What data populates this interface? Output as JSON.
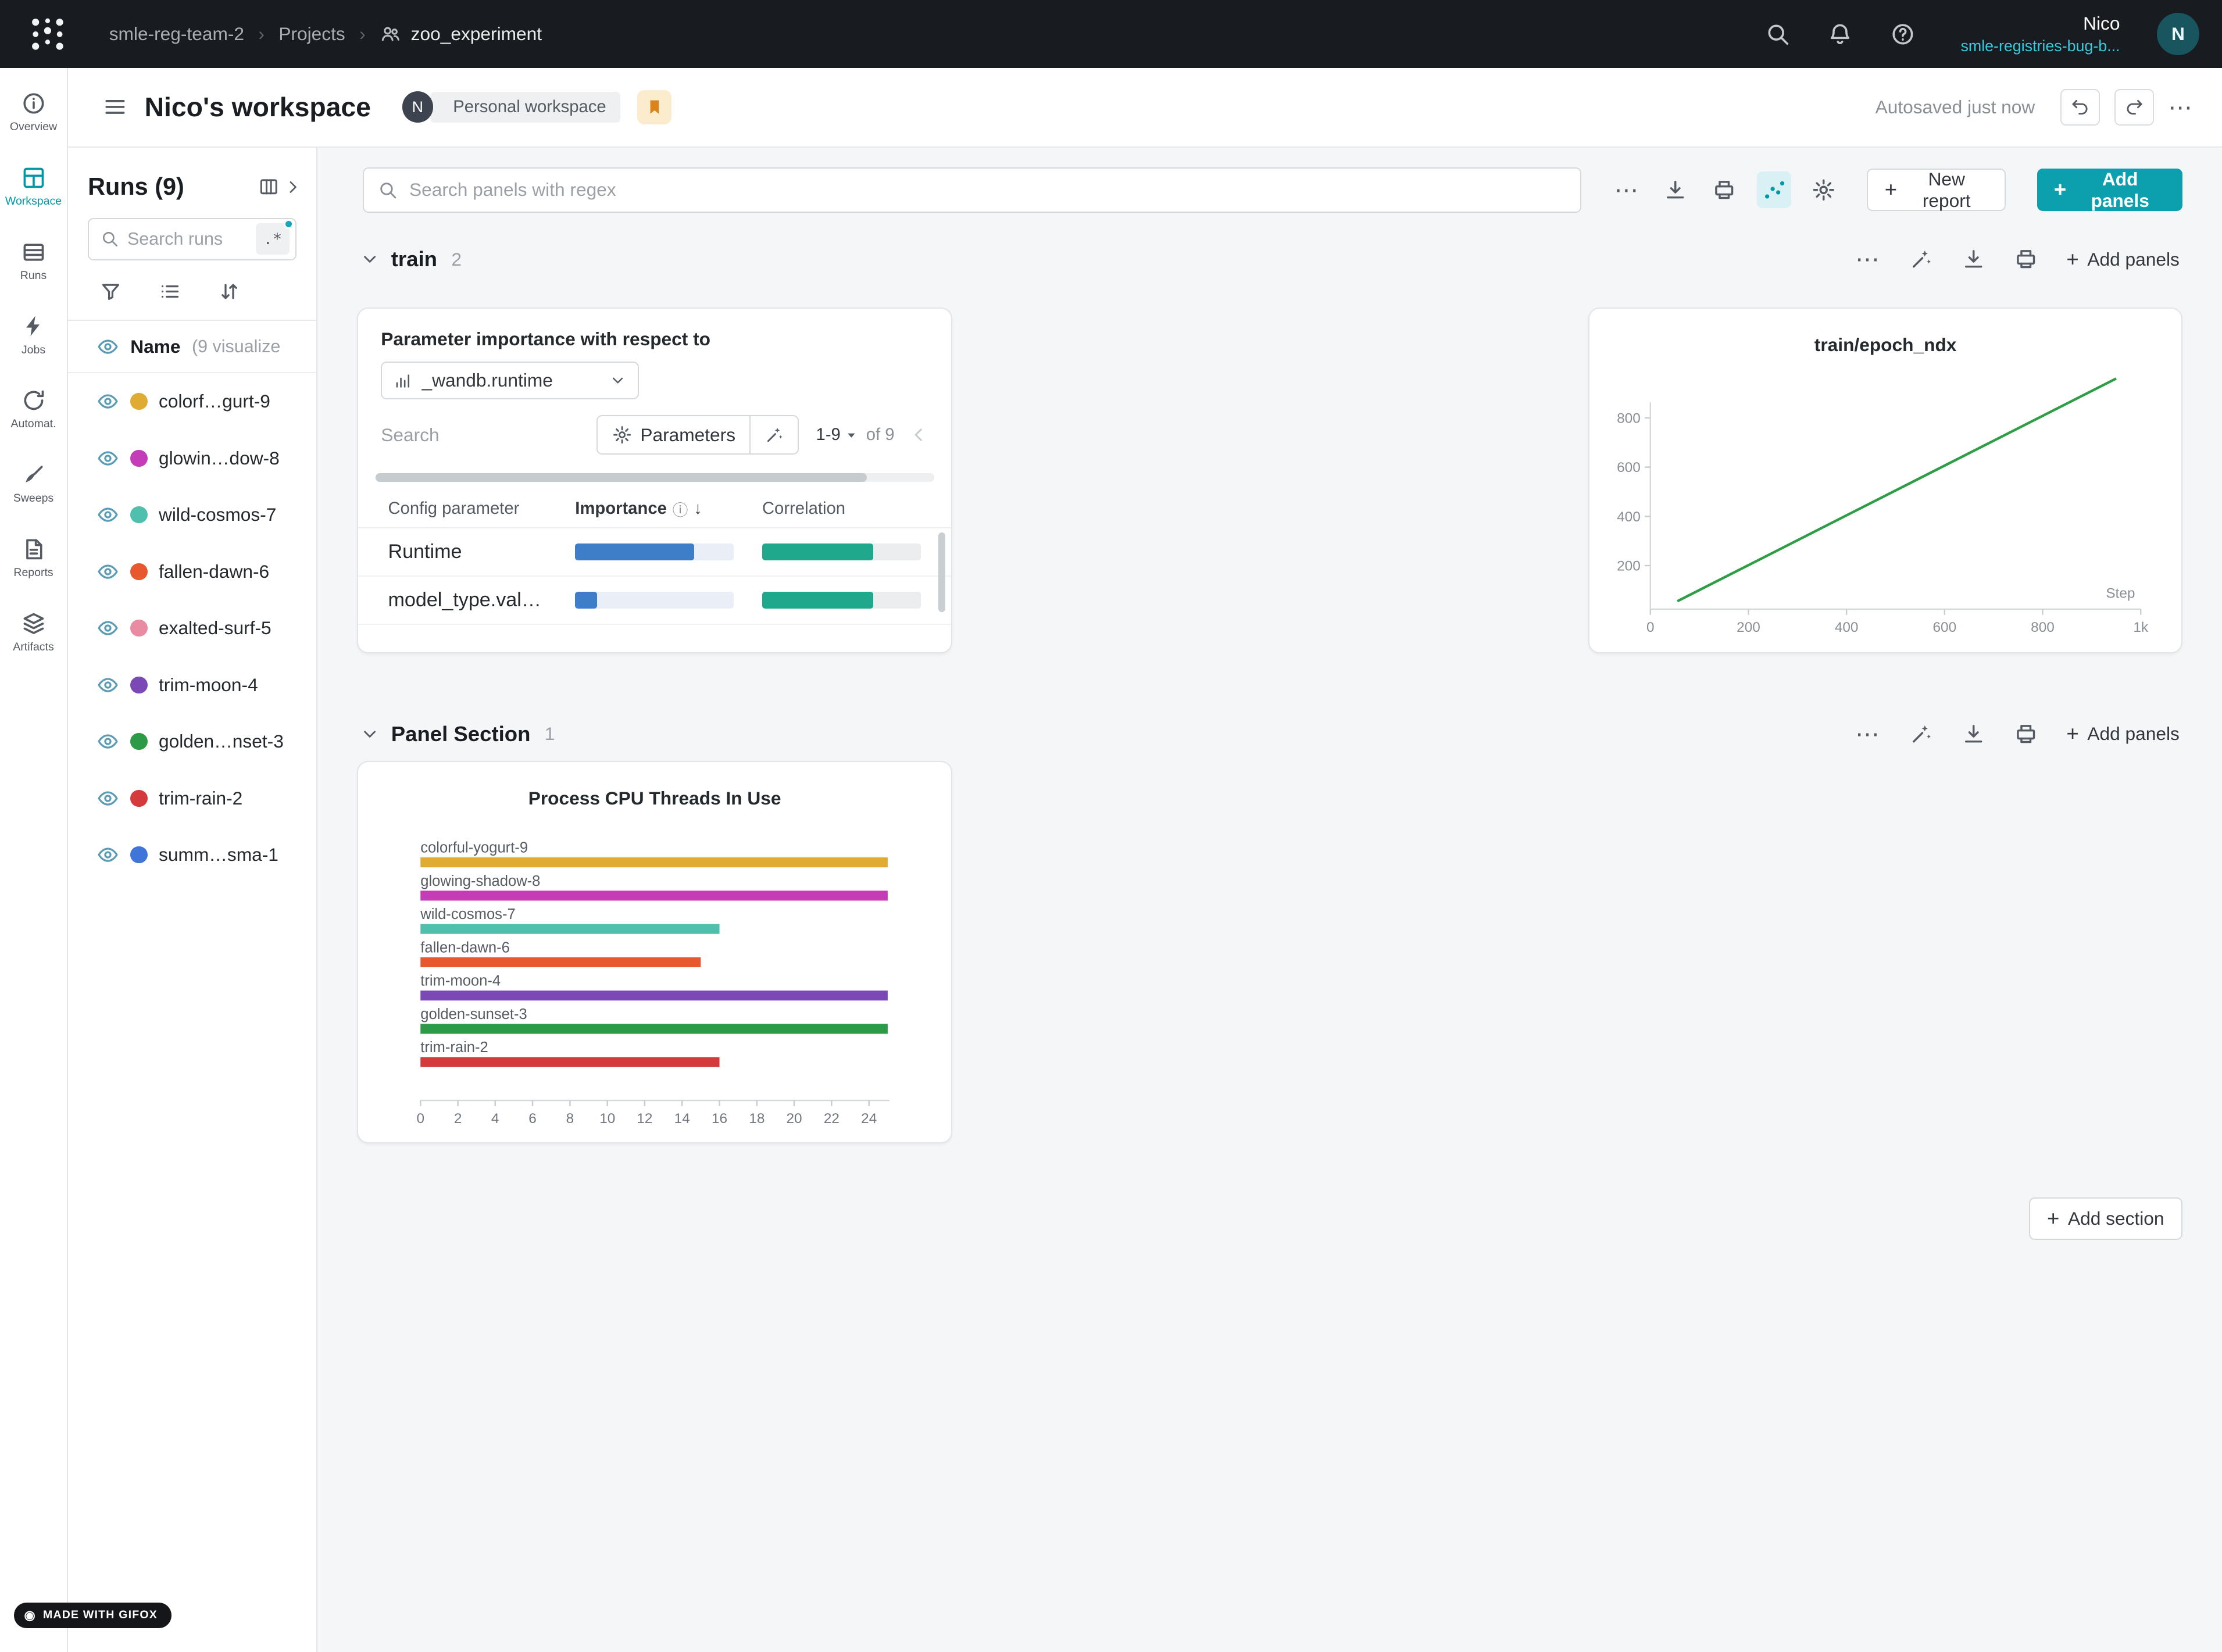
{
  "colors": {
    "accent": "#0ca0ae",
    "importance_bar": "#3e7dc8",
    "correlation_bar": "#1fa88c",
    "line_green": "#2e9e46"
  },
  "topnav": {
    "breadcrumb": {
      "team": "smle-reg-team-2",
      "section": "Projects",
      "project": "zoo_experiment"
    },
    "user": {
      "name": "Nico",
      "org": "smle-registries-bug-b...",
      "avatar_initial": "N"
    }
  },
  "ws_header": {
    "title": "Nico's workspace",
    "avatar_initial": "N",
    "badge": "Personal workspace",
    "autosave": "Autosaved just now"
  },
  "nav_rail": {
    "items": [
      {
        "label": "Overview",
        "icon": "info",
        "active": false
      },
      {
        "label": "Workspace",
        "icon": "panels",
        "active": true
      },
      {
        "label": "Runs",
        "icon": "table",
        "active": false
      },
      {
        "label": "Jobs",
        "icon": "bolt",
        "active": false
      },
      {
        "label": "Automat.",
        "icon": "auto",
        "active": false
      },
      {
        "label": "Sweeps",
        "icon": "broom",
        "active": false
      },
      {
        "label": "Reports",
        "icon": "doc",
        "active": false
      },
      {
        "label": "Artifacts",
        "icon": "layers",
        "active": false
      }
    ]
  },
  "runs_sidebar": {
    "title": "Runs (9)",
    "search_placeholder": "Search runs",
    "regex_toggle": ".*",
    "header_name": "Name",
    "header_suffix": "(9 visualize",
    "runs": [
      {
        "display": "colorf…gurt-9",
        "color": "#dfab33"
      },
      {
        "display": "glowin…dow-8",
        "color": "#c43cb8"
      },
      {
        "display": "wild-cosmos-7",
        "color": "#4fc0ae"
      },
      {
        "display": "fallen-dawn-6",
        "color": "#e8582f"
      },
      {
        "display": "exalted-surf-5",
        "color": "#e98ba2"
      },
      {
        "display": "trim-moon-4",
        "color": "#7a49b5"
      },
      {
        "display": "golden…nset-3",
        "color": "#2c9a46"
      },
      {
        "display": "trim-rain-2",
        "color": "#d43a3c"
      },
      {
        "display": "summ…sma-1",
        "color": "#3f74d8"
      }
    ]
  },
  "main": {
    "panel_search_placeholder": "Search panels with regex",
    "new_report_label": "New report",
    "add_panels_label": "Add panels",
    "add_section_label": "Add section",
    "sections": [
      {
        "name": "train",
        "count": "2"
      },
      {
        "name": "Panel Section",
        "count": "1"
      }
    ],
    "importance_panel": {
      "title": "Parameter importance with respect to",
      "metric": "_wandb.runtime",
      "search_placeholder": "Search",
      "parameters_label": "Parameters",
      "pagination": {
        "range": "1-9",
        "of": "of 9"
      },
      "columns": [
        "Config parameter",
        "Importance",
        "Correlation"
      ],
      "rows": [
        {
          "name": "Runtime",
          "importance": 0.75,
          "correlation": 0.7
        },
        {
          "name": "model_type.val…",
          "importance": 0.14,
          "correlation": 0.7
        }
      ]
    }
  },
  "chart_data": [
    {
      "type": "line",
      "title": "train/epoch_ndx",
      "xlabel": "Step",
      "series_color": "#2e9e46",
      "points": [
        [
          55,
          55
        ],
        [
          950,
          960
        ]
      ],
      "xlim": [
        0,
        1000
      ],
      "ylim": [
        0,
        1000
      ],
      "xticks": [
        0,
        200,
        400,
        600,
        800,
        1000
      ],
      "xtick_labels": [
        "0",
        "200",
        "400",
        "600",
        "800",
        "1k"
      ],
      "yticks": [
        200,
        400,
        600,
        800
      ]
    },
    {
      "type": "bar",
      "orientation": "horizontal",
      "title": "Process CPU Threads In Use",
      "categories": [
        "colorful-yogurt-9",
        "glowing-shadow-8",
        "wild-cosmos-7",
        "fallen-dawn-6",
        "trim-moon-4",
        "golden-sunset-3",
        "trim-rain-2"
      ],
      "values": [
        25,
        25,
        16,
        15,
        25,
        25,
        16
      ],
      "colors": [
        "#dfab33",
        "#c43cb8",
        "#4fc0ae",
        "#e8582f",
        "#7a49b5",
        "#2c9a46",
        "#d43a3c"
      ],
      "xticks": [
        0,
        2,
        4,
        6,
        8,
        10,
        12,
        14,
        16,
        18,
        20,
        22,
        24
      ],
      "xlim": [
        0,
        25.1
      ]
    }
  ],
  "footer": {
    "badge": "MADE WITH GIFOX"
  }
}
